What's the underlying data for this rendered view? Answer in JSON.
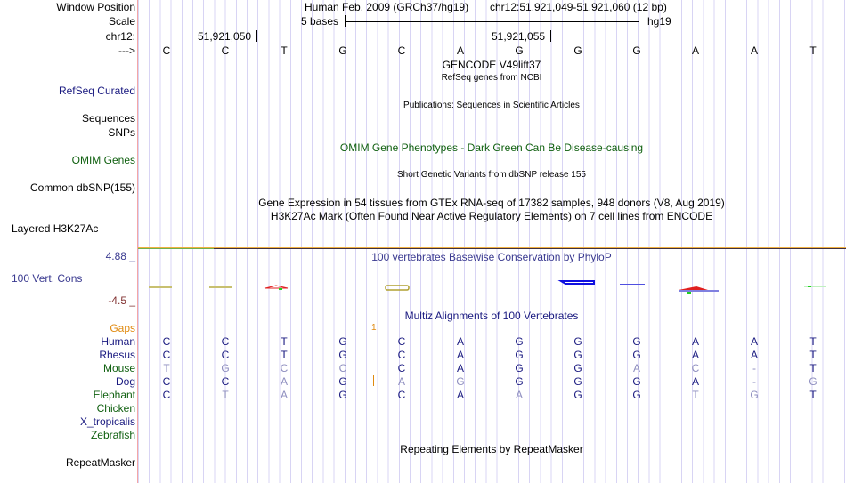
{
  "header": {
    "window_position_label": "Window Position",
    "scale_label": "Scale",
    "chrom_label": "chr12:",
    "strand_label": "--->",
    "assembly": "Human Feb. 2009 (GRCh37/hg19)",
    "position": "chr12:51,921,049-51,921,060 (12 bp)",
    "scale_text": "5 bases",
    "scale_db": "hg19",
    "coord_1": "51,921,050",
    "coord_2": "51,921,055"
  },
  "bases": [
    "C",
    "C",
    "T",
    "G",
    "C",
    "A",
    "G",
    "G",
    "G",
    "A",
    "A",
    "T"
  ],
  "tracks": {
    "gencode_title": "GENCODE V49lift37",
    "refseq_title": "RefSeq genes from NCBI",
    "refseq_label": "RefSeq Curated",
    "publications_title": "Publications: Sequences in Scientific Articles",
    "sequences_label": "Sequences",
    "snps_label": "SNPs",
    "omim_title": "OMIM Gene Phenotypes - Dark Green Can Be Disease-causing",
    "omim_label": "OMIM Genes",
    "dbsnp_title": "Short Genetic Variants from dbSNP release 155",
    "dbsnp_label": "Common dbSNP(155)",
    "gtex_title": "Gene Expression in 54 tissues from GTEx RNA-seq of 17382 samples, 948 donors (V8, Aug 2019)",
    "h3k27ac_title": "H3K27Ac Mark (Often Found Near Active Regulatory Elements) on 7 cell lines from ENCODE",
    "h3k27ac_label": "Layered H3K27Ac",
    "phylop_title": "100 vertebrates Basewise Conservation by PhyloP",
    "phylop_label": "100 Vert. Cons",
    "phylop_max": "4.88 _",
    "phylop_min": "-4.5 _",
    "multiz_title": "Multiz Alignments of 100 Vertebrates",
    "gaps_label": "Gaps",
    "gaps_count": "1",
    "repeat_title": "Repeating Elements by RepeatMasker",
    "repeat_label": "RepeatMasker"
  },
  "alignment": [
    {
      "species": "Human",
      "seq": "CCTGCAGGGAAT",
      "color": "#1a1a80"
    },
    {
      "species": "Rhesus",
      "seq": "CCTGCAGGGAAT",
      "color": "#1a1a80"
    },
    {
      "species": "Mouse",
      "seq": "TGCCCAGGAC-T",
      "color": "#106010"
    },
    {
      "species": "Dog",
      "seq": "CCAGAGGGGA-G",
      "color": "#1a1a80"
    },
    {
      "species": "Elephant",
      "seq": "CTAGCAAGGTGT",
      "color": "#106010"
    },
    {
      "species": "Chicken",
      "seq": "",
      "color": "#106010"
    },
    {
      "species": "X_tropicalis",
      "seq": "",
      "color": "#1a1a80"
    },
    {
      "species": "Zebrafish",
      "seq": "",
      "color": "#106010"
    }
  ],
  "colors": {
    "match": "#1a1a80",
    "mismatch": "#8e8ebf",
    "gap": "#e08a10"
  }
}
